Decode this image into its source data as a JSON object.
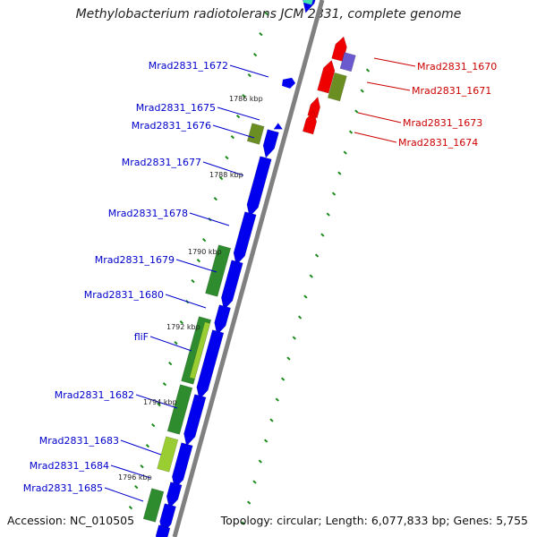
{
  "title": "Methylobacterium radiotolerans JCM 2831, complete genome",
  "footer": {
    "accession": "Accession: NC_010505",
    "topology": "Topology: circular; Length: 6,077,833 bp; Genes: 5,755"
  },
  "colors": {
    "forward_gene": "#0000ee",
    "reverse_gene": "#ee0000",
    "cds_green": "#2e8b2e",
    "cds_lightgreen": "#9acd32",
    "cds_olive": "#6b8e23",
    "purple": "#6a5acd",
    "teal": "#40e0b0",
    "backbone": "#808080",
    "tick": "#1a8a1a",
    "label_blue": "#0000cc",
    "label_red": "#cc0000"
  },
  "left_labels": [
    {
      "text": "Mrad2831_1672"
    },
    {
      "text": "Mrad2831_1675"
    },
    {
      "text": "Mrad2831_1676"
    },
    {
      "text": "Mrad2831_1677"
    },
    {
      "text": "Mrad2831_1678"
    },
    {
      "text": "Mrad2831_1679"
    },
    {
      "text": "Mrad2831_1680"
    },
    {
      "text": "fliF"
    },
    {
      "text": "Mrad2831_1682"
    },
    {
      "text": "Mrad2831_1683"
    },
    {
      "text": "Mrad2831_1684"
    },
    {
      "text": "Mrad2831_1685"
    }
  ],
  "right_labels": [
    {
      "text": "Mrad2831_1670"
    },
    {
      "text": "Mrad2831_1671"
    },
    {
      "text": "Mrad2831_1673"
    },
    {
      "text": "Mrad2831_1674"
    }
  ],
  "kbp_labels": [
    {
      "text": "1786 kbp"
    },
    {
      "text": "1788 kbp"
    },
    {
      "text": "1790 kbp"
    },
    {
      "text": "1792 kbp"
    },
    {
      "text": "1794 kbp"
    },
    {
      "text": "1796 kbp"
    }
  ]
}
